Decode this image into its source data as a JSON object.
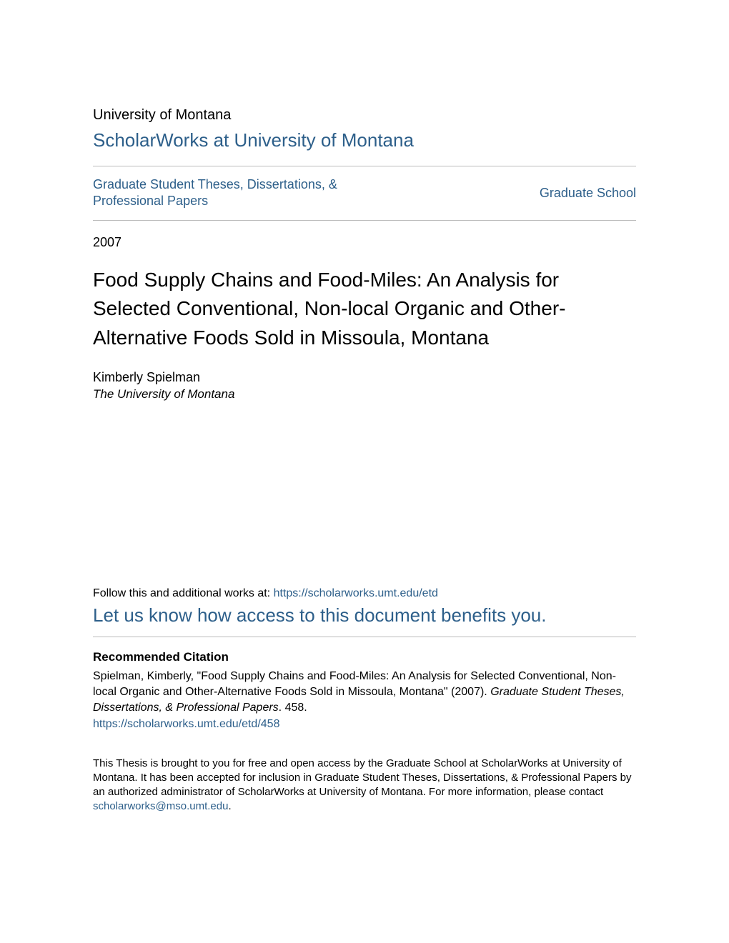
{
  "colors": {
    "link": "#2d5f8a",
    "text": "#000000",
    "divider": "#bbbbbb",
    "background": "#ffffff"
  },
  "typography": {
    "base_family": "Arial, Helvetica, sans-serif",
    "institution_fontsize": 20,
    "repository_fontsize": 26,
    "collection_fontsize": 18,
    "year_fontsize": 18,
    "title_fontsize": 28,
    "author_fontsize": 18,
    "affiliation_fontsize": 17,
    "follow_fontsize": 16,
    "benefits_fontsize": 26,
    "citation_heading_fontsize": 17,
    "citation_text_fontsize": 16,
    "footer_fontsize": 15
  },
  "header": {
    "institution": "University of Montana",
    "repository": "ScholarWorks at University of Montana",
    "collection": "Graduate Student Theses, Dissertations, & Professional Papers",
    "school": "Graduate School"
  },
  "metadata": {
    "year": "2007",
    "title": "Food Supply Chains and Food-Miles: An Analysis for Selected Conventional, Non-local Organic and Other-Alternative Foods Sold in Missoula, Montana",
    "author": "Kimberly Spielman",
    "affiliation": "The University of Montana"
  },
  "follow": {
    "label": "Follow this and additional works at: ",
    "url": "https://scholarworks.umt.edu/etd"
  },
  "benefits": {
    "label": "Let us know how access to this document benefits you."
  },
  "citation": {
    "heading": "Recommended Citation",
    "text_part1": "Spielman, Kimberly, \"Food Supply Chains and Food-Miles: An Analysis for Selected Conventional, Non-local Organic and Other-Alternative Foods Sold in Missoula, Montana\" (2007). ",
    "text_italic": "Graduate Student Theses, Dissertations, & Professional Papers",
    "text_part2": ". 458.",
    "url": "https://scholarworks.umt.edu/etd/458"
  },
  "footer": {
    "text_part1": "This Thesis is brought to you for free and open access by the Graduate School at ScholarWorks at University of Montana. It has been accepted for inclusion in Graduate Student Theses, Dissertations, & Professional Papers by an authorized administrator of ScholarWorks at University of Montana. For more information, please contact ",
    "email": "scholarworks@mso.umt.edu",
    "text_part2": "."
  }
}
